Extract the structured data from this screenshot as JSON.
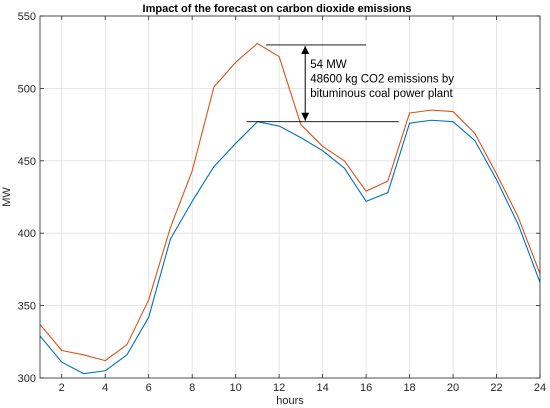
{
  "chart_data": {
    "type": "line",
    "title": "Impact of the forecast on carbon dioxide emissions",
    "xlabel": "hours",
    "ylabel": "MW",
    "xlim": [
      1,
      24
    ],
    "ylim": [
      300,
      550
    ],
    "xticks": [
      2,
      4,
      6,
      8,
      10,
      12,
      14,
      16,
      18,
      20,
      22,
      24
    ],
    "yticks": [
      300,
      350,
      400,
      450,
      500,
      550
    ],
    "grid": true,
    "x": [
      1,
      2,
      3,
      4,
      5,
      6,
      7,
      8,
      9,
      10,
      11,
      12,
      13,
      14,
      15,
      16,
      17,
      18,
      19,
      20,
      21,
      22,
      23,
      24
    ],
    "series": [
      {
        "color": "#D95319",
        "values": [
          337,
          319,
          316,
          312,
          323,
          354,
          404,
          443,
          501,
          518,
          531,
          522,
          475,
          460,
          450,
          429,
          436,
          483,
          485,
          484,
          469,
          441,
          411,
          372
        ]
      },
      {
        "color": "#0072BD",
        "values": [
          329,
          311,
          303,
          305,
          316,
          342,
          396,
          422,
          446,
          462,
          477,
          474,
          466,
          457,
          445,
          422,
          428,
          476,
          478,
          477,
          464,
          437,
          406,
          366
        ]
      }
    ],
    "annotations": {
      "upper_ref": {
        "value": 530,
        "x_from": 11.4,
        "x_to": 16.0
      },
      "lower_ref": {
        "value": 477,
        "x_from": 10.5,
        "x_to": 17.5
      },
      "arrow_x": 13.2,
      "lines": [
        "54 MW",
        "48600 kg CO2 emissions by",
        "bituminous coal power plant"
      ]
    }
  }
}
